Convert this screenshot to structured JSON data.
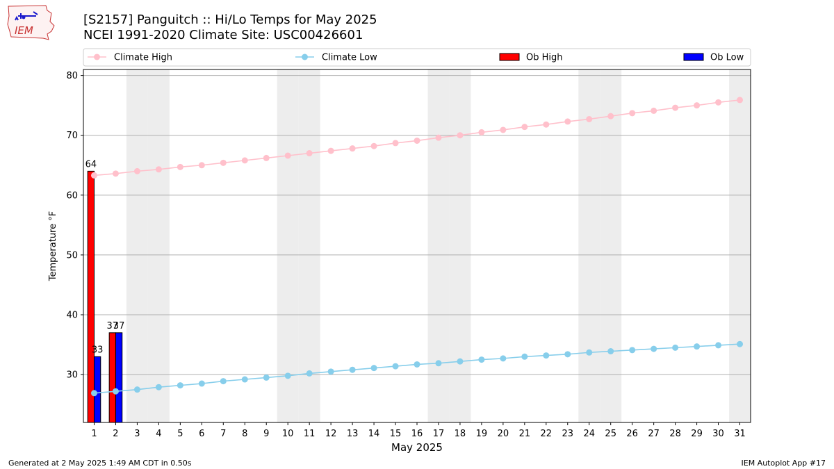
{
  "logo_text": "IEM",
  "title_line1": "[S2157] Panguitch :: Hi/Lo Temps for May 2025",
  "title_line2": "NCEI 1991-2020 Climate Site: USC00426601",
  "footer_left": "Generated at 2 May 2025 1:49 AM CDT in 0.50s",
  "footer_right": "IEM Autoplot App #17",
  "colors": {
    "climate_high": "#ffc0cb",
    "climate_low": "#87ceeb",
    "ob_high": "#ff0000",
    "ob_low": "#0000ff",
    "weekend_band": "#ededed",
    "grid": "#b0b0b0"
  },
  "chart_data": {
    "type": "bar+line",
    "xlabel": "May 2025",
    "ylabel": "Temperature °F",
    "xlim": [
      0.5,
      31.5
    ],
    "ylim": [
      22,
      81
    ],
    "yticks": [
      30,
      40,
      50,
      60,
      70,
      80
    ],
    "xticks": [
      1,
      2,
      3,
      4,
      5,
      6,
      7,
      8,
      9,
      10,
      11,
      12,
      13,
      14,
      15,
      16,
      17,
      18,
      19,
      20,
      21,
      22,
      23,
      24,
      25,
      26,
      27,
      28,
      29,
      30,
      31
    ],
    "grid": "horizontal",
    "legend": "top",
    "weekend_days": [
      3,
      4,
      10,
      11,
      17,
      18,
      24,
      25,
      31
    ],
    "series": [
      {
        "name": "Climate High",
        "kind": "line",
        "x": [
          1,
          2,
          3,
          4,
          5,
          6,
          7,
          8,
          9,
          10,
          11,
          12,
          13,
          14,
          15,
          16,
          17,
          18,
          19,
          20,
          21,
          22,
          23,
          24,
          25,
          26,
          27,
          28,
          29,
          30,
          31
        ],
        "values": [
          63.3,
          63.6,
          64.0,
          64.3,
          64.7,
          65.0,
          65.4,
          65.8,
          66.2,
          66.6,
          67.0,
          67.4,
          67.8,
          68.2,
          68.7,
          69.1,
          69.6,
          70.0,
          70.5,
          70.9,
          71.4,
          71.8,
          72.3,
          72.7,
          73.2,
          73.7,
          74.1,
          74.6,
          75.0,
          75.5,
          75.9
        ]
      },
      {
        "name": "Climate Low",
        "kind": "line",
        "x": [
          1,
          2,
          3,
          4,
          5,
          6,
          7,
          8,
          9,
          10,
          11,
          12,
          13,
          14,
          15,
          16,
          17,
          18,
          19,
          20,
          21,
          22,
          23,
          24,
          25,
          26,
          27,
          28,
          29,
          30,
          31
        ],
        "values": [
          26.9,
          27.2,
          27.5,
          27.9,
          28.2,
          28.5,
          28.9,
          29.2,
          29.5,
          29.8,
          30.2,
          30.5,
          30.8,
          31.1,
          31.4,
          31.7,
          31.9,
          32.2,
          32.5,
          32.7,
          33.0,
          33.2,
          33.4,
          33.7,
          33.9,
          34.1,
          34.3,
          34.5,
          34.7,
          34.9,
          35.1
        ]
      },
      {
        "name": "Ob High",
        "kind": "bar",
        "x": [
          1,
          2
        ],
        "values": [
          64,
          37
        ],
        "labels": [
          "64",
          "37"
        ]
      },
      {
        "name": "Ob Low",
        "kind": "bar",
        "x": [
          1,
          2
        ],
        "values": [
          33,
          37
        ],
        "labels": [
          "33",
          "37"
        ]
      }
    ]
  }
}
